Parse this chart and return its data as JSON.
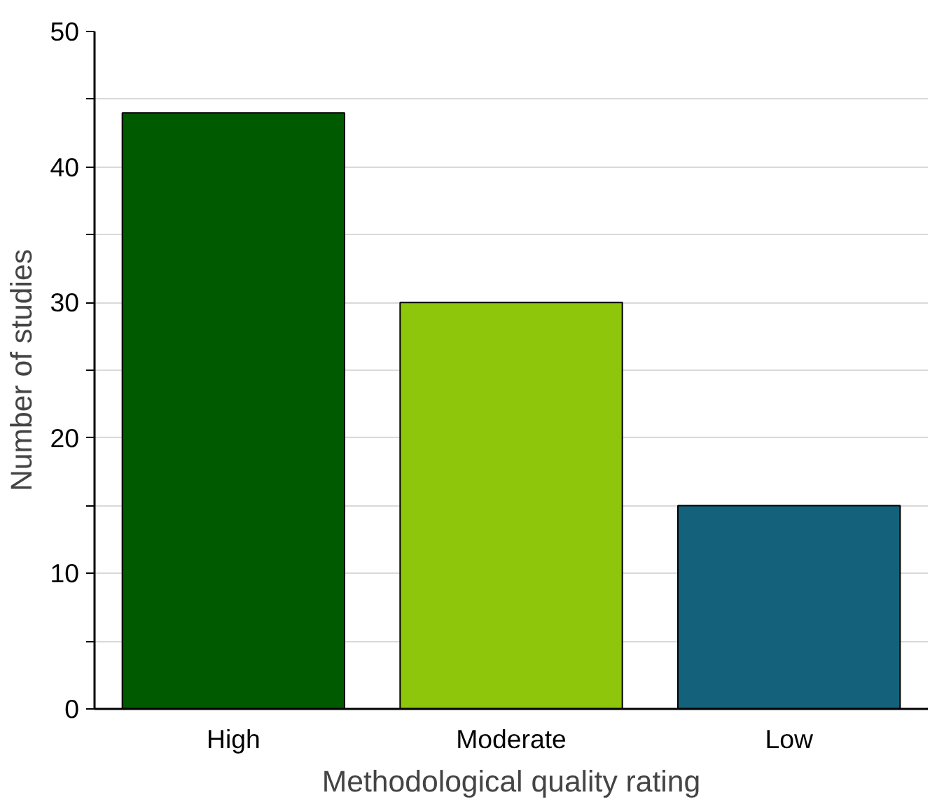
{
  "chart_data": {
    "type": "bar",
    "xlabel": "Methodological quality rating",
    "ylabel": "Number of studies",
    "categories": [
      "High",
      "Moderate",
      "Low"
    ],
    "values": [
      44,
      30,
      15
    ],
    "colors": [
      "#005a00",
      "#8dc60a",
      "#13617a"
    ],
    "ylim": [
      0,
      50
    ],
    "yticks": [
      0,
      {
        "value": 5,
        "label": null
      },
      10,
      {
        "value": 15,
        "label": null
      },
      20,
      {
        "value": 25,
        "label": null
      },
      30,
      {
        "value": 35,
        "label": null
      },
      40,
      {
        "value": 45,
        "label": null
      },
      50
    ],
    "grid": "y"
  }
}
